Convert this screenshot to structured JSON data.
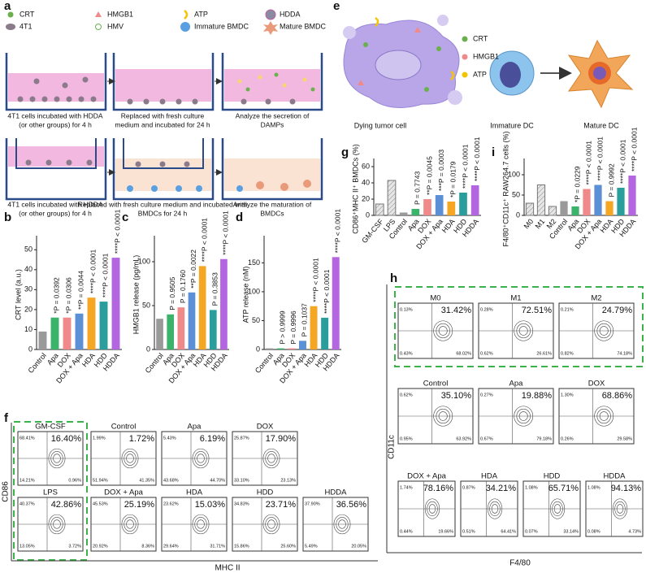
{
  "panel_a": {
    "label": "a",
    "legend": [
      "CRT",
      "HMGB1",
      "ATP",
      "HDDA",
      "4T1",
      "HMV",
      "Immature BMDC",
      "Mature BMDC"
    ],
    "steps": [
      [
        "4T1 cells incubated with HDDA",
        "(or other groups) for 4 h"
      ],
      [
        "Replaced with fresh culture",
        "medium and incubated for 24 h"
      ],
      [
        "Analyze the secretion of",
        "DAMPs"
      ],
      [
        "4T1 cells incubated with HDDA",
        "(or other groups) for 4 h"
      ],
      [
        "Replaced with fresh culture medium and incubated with",
        "BMDCs for 24 h"
      ],
      [
        "Analyze the maturation of",
        "BMDCs"
      ]
    ]
  },
  "panel_e": {
    "label": "e",
    "legend": [
      "CRT",
      "HMGB1",
      "ATP"
    ],
    "captions": [
      "Dying tumor cell",
      "Immature DC",
      "Mature DC"
    ]
  },
  "chart_data": [
    {
      "type": "bar",
      "panel": "b",
      "y_label": "CRT level (a.u.)",
      "categories": [
        "Control",
        "Apa",
        "DOX",
        "DOX + Apa",
        "HDA",
        "HDD",
        "HDDA"
      ],
      "values": [
        9,
        16,
        16,
        18,
        26,
        24,
        46
      ],
      "colors": [
        "#9a9a9a",
        "#3bb36b",
        "#f08a8a",
        "#5b8fd6",
        "#f5a623",
        "#2a9d9d",
        "#b366e0"
      ],
      "hatch": [
        false,
        false,
        false,
        false,
        false,
        false,
        false
      ],
      "annotations": [
        null,
        "*P = 0.0392",
        "*P = 0.0306",
        "**P = 0.0044",
        "****P < 0.0001",
        "****P < 0.0001",
        "****P < 0.0001"
      ],
      "ylim": [
        0,
        55
      ],
      "yticks": [
        0,
        10,
        20,
        30,
        40,
        50
      ]
    },
    {
      "type": "bar",
      "panel": "c",
      "y_label": "HMGB1 release (pg/mL)",
      "categories": [
        "Control",
        "Apa",
        "DOX",
        "DOX + Apa",
        "HDA",
        "HDD",
        "HDDA"
      ],
      "values": [
        35,
        40,
        48,
        65,
        95,
        45,
        103
      ],
      "colors": [
        "#9a9a9a",
        "#3bb36b",
        "#f08a8a",
        "#5b8fd6",
        "#f5a623",
        "#2a9d9d",
        "#b366e0"
      ],
      "hatch": [
        false,
        false,
        false,
        false,
        false,
        false,
        false
      ],
      "annotations": [
        null,
        "P = 0.9505",
        "P = 0.1760",
        "**P = 0.0022",
        "****P < 0.0001",
        "P = 0.3853",
        "****P < 0.0001"
      ],
      "ylim": [
        0,
        125
      ],
      "yticks": [
        0,
        50,
        100
      ]
    },
    {
      "type": "bar",
      "panel": "d",
      "y_label": "ATP release (nM)",
      "categories": [
        "Control",
        "Apa",
        "DOX",
        "DOX + Apa",
        "HDA",
        "HDD",
        "HDDA"
      ],
      "values": [
        2,
        2,
        2,
        15,
        75,
        55,
        160
      ],
      "colors": [
        "#9a9a9a",
        "#3bb36b",
        "#f08a8a",
        "#5b8fd6",
        "#f5a623",
        "#2a9d9d",
        "#b366e0"
      ],
      "hatch": [
        false,
        false,
        false,
        false,
        false,
        false,
        false
      ],
      "annotations": [
        null,
        "P > 0.9999",
        "P = 0.9996",
        "P = 0.1037",
        "****P < 0.0001",
        "****P < 0.0001",
        "****P < 0.0001"
      ],
      "ylim": [
        0,
        190
      ],
      "yticks": [
        0,
        50,
        100,
        150
      ]
    },
    {
      "type": "bar",
      "panel": "g",
      "y_label": "CD86⁺MHC II⁺ BMDCs (%)",
      "categories": [
        "GM-CSF",
        "LPS",
        "Control",
        "Apa",
        "DOX",
        "DOX + Apa",
        "HDA",
        "HDD",
        "HDDA"
      ],
      "values": [
        14,
        43,
        3.5,
        8,
        20,
        25,
        17,
        28,
        37
      ],
      "colors": [
        "#d9d9d9",
        "#d9d9d9",
        "#9a9a9a",
        "#3bb36b",
        "#f08a8a",
        "#5b8fd6",
        "#f5a623",
        "#2a9d9d",
        "#b366e0"
      ],
      "hatch": [
        true,
        true,
        false,
        false,
        false,
        false,
        false,
        false,
        false
      ],
      "annotations": [
        null,
        null,
        null,
        "P = 0.7743",
        "**P = 0.0045",
        "***P = 0.0003",
        "*P = 0.0179",
        "****P < 0.0001",
        "****P < 0.0001"
      ],
      "ylim": [
        0,
        65
      ],
      "yticks": [
        0,
        20,
        40,
        60
      ]
    },
    {
      "type": "bar",
      "panel": "i",
      "y_label": "F4/80⁺CD11c⁺ RAW264.7 cells (%)",
      "categories": [
        "M0",
        "M1",
        "M2",
        "Control",
        "Apa",
        "DOX",
        "DOX + Apa",
        "HDA",
        "HDD",
        "HDDA"
      ],
      "values": [
        30,
        75,
        22,
        35,
        22,
        65,
        75,
        35,
        68,
        98
      ],
      "colors": [
        "#d9d9d9",
        "#d9d9d9",
        "#d9d9d9",
        "#9a9a9a",
        "#3bb36b",
        "#f08a8a",
        "#5b8fd6",
        "#f5a623",
        "#2a9d9d",
        "#b366e0"
      ],
      "hatch": [
        true,
        true,
        true,
        false,
        false,
        false,
        false,
        false,
        false,
        false
      ],
      "annotations": [
        null,
        null,
        null,
        null,
        "*P = 0.0229",
        "****P < 0.0001",
        "****P < 0.0001",
        "P = 0.9992",
        "****P < 0.0001",
        "****P < 0.0001"
      ],
      "ylim": [
        0,
        130
      ],
      "yticks": [
        0,
        50,
        100
      ]
    }
  ],
  "panel_f": {
    "label": "f",
    "x_label": "MHC II",
    "y_label": "CD86",
    "plots": [
      {
        "name": "GM-CSF",
        "quadrants": [
          "68.41%",
          "16.40%",
          "14.21%",
          "0.96%"
        ]
      },
      {
        "name": "Control",
        "quadrants": [
          "1.99%",
          "1.72%",
          "51.94%",
          "41.35%"
        ]
      },
      {
        "name": "Apa",
        "quadrants": [
          "5.43%",
          "6.19%",
          "43.68%",
          "44.70%"
        ]
      },
      {
        "name": "DOX",
        "quadrants": [
          "25.87%",
          "17.90%",
          "33.10%",
          "23.13%"
        ]
      },
      {
        "name": "LPS",
        "quadrants": [
          "40.37%",
          "42.86%",
          "13.05%",
          "3.72%"
        ]
      },
      {
        "name": "DOX + Apa",
        "quadrants": [
          "45.53%",
          "25.19%",
          "20.92%",
          "8.36%"
        ]
      },
      {
        "name": "HDA",
        "quadrants": [
          "23.62%",
          "15.03%",
          "29.64%",
          "31.71%"
        ]
      },
      {
        "name": "HDD",
        "quadrants": [
          "34.83%",
          "23.71%",
          "15.86%",
          "25.60%"
        ]
      },
      {
        "name": "HDDA",
        "quadrants": [
          "37.90%",
          "36.56%",
          "5.49%",
          "20.05%"
        ]
      }
    ]
  },
  "panel_h": {
    "label": "h",
    "x_label": "F4/80",
    "y_label": "CD11c",
    "plots": [
      {
        "name": "M0",
        "quadrants": [
          "0.13%",
          "31.42%",
          "0.43%",
          "68.02%"
        ]
      },
      {
        "name": "M1",
        "quadrants": [
          "0.28%",
          "72.51%",
          "0.62%",
          "26.61%"
        ]
      },
      {
        "name": "M2",
        "quadrants": [
          "0.21%",
          "24.79%",
          "0.82%",
          "74.18%"
        ]
      },
      {
        "name": "Control",
        "quadrants": [
          "0.62%",
          "35.10%",
          "0.95%",
          "63.92%"
        ]
      },
      {
        "name": "Apa",
        "quadrants": [
          "0.27%",
          "19.88%",
          "0.67%",
          "79.18%"
        ]
      },
      {
        "name": "DOX",
        "quadrants": [
          "1.30%",
          "68.86%",
          "0.26%",
          "29.58%"
        ]
      },
      {
        "name": "DOX + Apa",
        "quadrants": [
          "1.74%",
          "78.16%",
          "0.44%",
          "19.66%"
        ]
      },
      {
        "name": "HDA",
        "quadrants": [
          "0.87%",
          "34.21%",
          "0.51%",
          "64.41%"
        ]
      },
      {
        "name": "HDD",
        "quadrants": [
          "1.08%",
          "65.71%",
          "0.07%",
          "33.14%"
        ]
      },
      {
        "name": "HDDA",
        "quadrants": [
          "1.08%",
          "94.13%",
          "0.08%",
          "4.73%"
        ]
      }
    ]
  }
}
